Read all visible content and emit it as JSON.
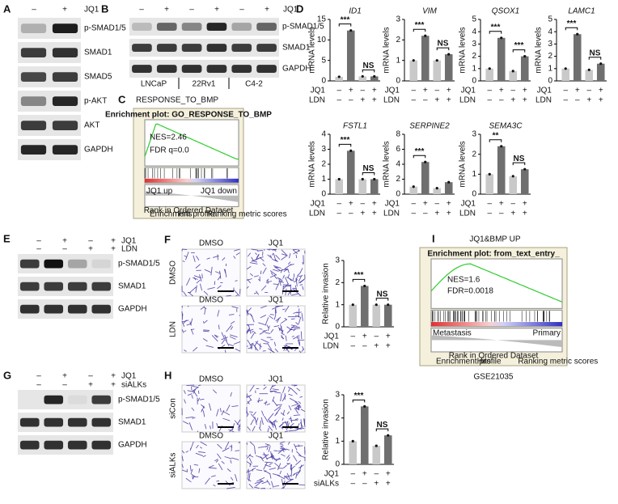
{
  "bar_colors": [
    "#c9c9c9",
    "#6f6f6f",
    "#c9c9c9",
    "#6f6f6f"
  ],
  "A": {
    "label": "A",
    "signs": [
      "–",
      "+"
    ],
    "treatment": "JQ1",
    "bands": [
      "p-SMAD1/5",
      "SMAD1",
      "SMAD5",
      "p-AKT",
      "AKT",
      "GAPDH"
    ]
  },
  "B": {
    "label": "B",
    "signs": [
      "–",
      "+",
      "–",
      "+",
      "–",
      "+"
    ],
    "treatment": "JQ1",
    "bands": [
      "p-SMAD1/5",
      "SMAD1",
      "GAPDH"
    ],
    "cell_lines": [
      "LNCaP",
      "22Rv1",
      "C4-2"
    ]
  },
  "C": {
    "label": "C",
    "title": "RESPONSE_TO_BMP",
    "plot_title": "Enrichment plot: GO_RESPONSE_TO_BMP",
    "nes": "NES=2.46",
    "fdr": "FDR q=0.0",
    "left": "JQ1 up",
    "right": "JQ1 down",
    "x_label": "Rank in Ordered Dataset",
    "legend": [
      "Enrichment profile",
      "Hits",
      "Ranking metric scores"
    ]
  },
  "D": {
    "label": "D",
    "ylabel": "mRNA levels",
    "conditions": [
      {
        "name": "JQ1",
        "signs": [
          "–",
          "+",
          "–",
          "+"
        ]
      },
      {
        "name": "LDN",
        "signs": [
          "–",
          "–",
          "+",
          "+"
        ]
      }
    ],
    "charts": [
      {
        "title": "ID1",
        "ylim": [
          0,
          15
        ],
        "yticks": [
          0,
          5,
          10,
          15
        ],
        "values": [
          1,
          12.3,
          1.1,
          1.1
        ],
        "significance": [
          "***",
          "NS"
        ]
      },
      {
        "title": "VIM",
        "ylim": [
          0,
          3
        ],
        "yticks": [
          0,
          1,
          2,
          3
        ],
        "values": [
          1,
          2.2,
          1.0,
          1.3
        ],
        "significance": [
          "***",
          "NS"
        ]
      },
      {
        "title": "QSOX1",
        "ylim": [
          0,
          5
        ],
        "yticks": [
          0,
          1,
          2,
          3,
          4,
          5
        ],
        "values": [
          1,
          3.5,
          0.8,
          2.0
        ],
        "significance": [
          "***",
          "***"
        ]
      },
      {
        "title": "LAMC1",
        "ylim": [
          0,
          5
        ],
        "yticks": [
          0,
          1,
          2,
          3,
          4,
          5
        ],
        "values": [
          1,
          3.8,
          0.9,
          1.4
        ],
        "significance": [
          "***",
          "NS"
        ]
      },
      {
        "title": "FSTL1",
        "ylim": [
          0,
          4
        ],
        "yticks": [
          0,
          1,
          2,
          3,
          4
        ],
        "values": [
          1,
          2.9,
          1.0,
          1.0
        ],
        "significance": [
          "***",
          "NS"
        ]
      },
      {
        "title": "SERPINE2",
        "ylim": [
          0,
          8
        ],
        "yticks": [
          0,
          2,
          4,
          6,
          8
        ],
        "values": [
          1,
          4.3,
          0.8,
          1.6
        ],
        "significance": [
          "***"
        ]
      },
      {
        "title": "SEMA3C",
        "ylim": [
          0,
          3
        ],
        "yticks": [
          0,
          1,
          2,
          3
        ],
        "values": [
          1,
          2.4,
          0.9,
          1.25
        ],
        "significance": [
          "**",
          "NS"
        ]
      }
    ]
  },
  "E": {
    "label": "E",
    "conditions": [
      {
        "name": "JQ1",
        "signs": [
          "–",
          "+",
          "–",
          "+"
        ]
      },
      {
        "name": "LDN",
        "signs": [
          "–",
          "–",
          "+",
          "+"
        ]
      }
    ],
    "bands": [
      "p-SMAD1/5",
      "SMAD1",
      "GAPDH"
    ]
  },
  "F": {
    "label": "F",
    "columns": [
      "DMSO",
      "JQ1"
    ],
    "rows": [
      "DMSO",
      "LDN"
    ],
    "chart": {
      "ylabel": "Relative invasion",
      "ylim": [
        0,
        3
      ],
      "yticks": [
        0,
        1,
        2,
        3
      ],
      "values": [
        1,
        1.85,
        1.0,
        1.0
      ],
      "significance": [
        "***",
        "NS"
      ]
    },
    "conditions": [
      {
        "name": "JQ1",
        "signs": [
          "–",
          "+",
          "–",
          "+"
        ]
      },
      {
        "name": "LDN",
        "signs": [
          "–",
          "–",
          "+",
          "+"
        ]
      }
    ]
  },
  "G": {
    "label": "G",
    "conditions": [
      {
        "name": "JQ1",
        "signs": [
          "–",
          "+",
          "–",
          "+"
        ]
      },
      {
        "name": "siALKs",
        "signs": [
          "–",
          "–",
          "+",
          "+"
        ]
      }
    ],
    "bands": [
      "p-SMAD1/5",
      "SMAD1",
      "GAPDH"
    ]
  },
  "H": {
    "label": "H",
    "columns": [
      "DMSO",
      "JQ1"
    ],
    "rows": [
      "siCon",
      "siALKs"
    ],
    "chart": {
      "ylabel": "Relative invasion",
      "ylim": [
        0,
        3
      ],
      "yticks": [
        0,
        1,
        2,
        3
      ],
      "values": [
        1,
        2.5,
        0.8,
        1.25
      ],
      "significance": [
        "***",
        "NS"
      ]
    },
    "conditions": [
      {
        "name": "JQ1",
        "signs": [
          "–",
          "+",
          "–",
          "+"
        ]
      },
      {
        "name": "siALKs",
        "signs": [
          "–",
          "–",
          "+",
          "+"
        ]
      }
    ]
  },
  "I": {
    "label": "I",
    "title": "JQ1&BMP UP",
    "plot_title": "Enrichment plot: from_text_entry_",
    "nes": "NES=1.6",
    "fdr": "FDR=0.0018",
    "left": "Metastasis",
    "right": "Primary",
    "x_label": "Rank in Ordered Dataset",
    "legend": [
      "Enrichment profile",
      "Hits",
      "Ranking metric scores"
    ],
    "dataset": "GSE21035"
  }
}
